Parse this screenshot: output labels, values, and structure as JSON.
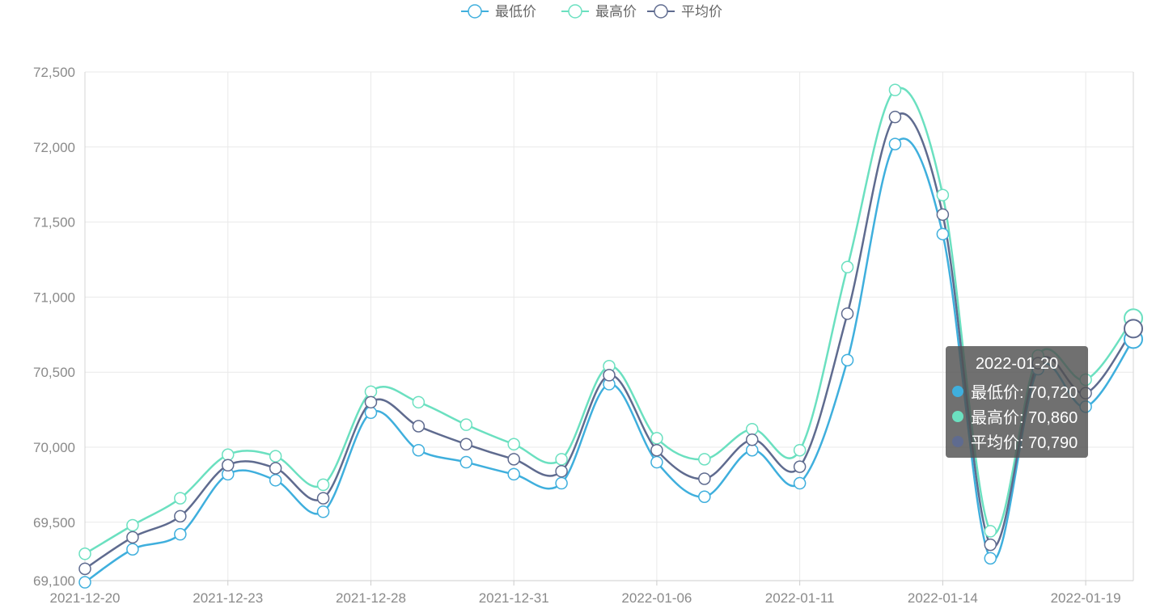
{
  "chart_data": {
    "type": "line",
    "smooth": true,
    "x": [
      "2021-12-20",
      "2021-12-21",
      "2021-12-22",
      "2021-12-23",
      "2021-12-24",
      "2021-12-27",
      "2021-12-28",
      "2021-12-29",
      "2021-12-30",
      "2021-12-31",
      "2022-01-04",
      "2022-01-05",
      "2022-01-06",
      "2022-01-07",
      "2022-01-10",
      "2022-01-11",
      "2022-01-12",
      "2022-01-13",
      "2022-01-14",
      "2022-01-17",
      "2022-01-18",
      "2022-01-19",
      "2022-01-20"
    ],
    "x_tick_labels": [
      "2021-12-20",
      "2021-12-23",
      "2021-12-28",
      "2021-12-31",
      "2022-01-06",
      "2022-01-11",
      "2022-01-14",
      "2022-01-19"
    ],
    "y_tick_labels": [
      "69,100",
      "69,500",
      "70,000",
      "70,500",
      "71,000",
      "71,500",
      "72,000",
      "72,500"
    ],
    "ylim": [
      69100,
      72500
    ],
    "grid": true,
    "legend_position": "top-center",
    "series": [
      {
        "name": "最低价",
        "color": "#3fafdd",
        "values": [
          69100,
          69320,
          69420,
          69820,
          69780,
          69570,
          70230,
          69980,
          69900,
          69820,
          69760,
          70420,
          69900,
          69670,
          69980,
          69760,
          70580,
          72020,
          71420,
          69260,
          70520,
          70270,
          70720
        ]
      },
      {
        "name": "最高价",
        "color": "#6be0c0",
        "values": [
          69290,
          69480,
          69660,
          69950,
          69940,
          69750,
          70370,
          70300,
          70150,
          70020,
          69920,
          70540,
          70060,
          69920,
          70120,
          69980,
          71200,
          72380,
          71680,
          69440,
          70610,
          70450,
          70860
        ]
      },
      {
        "name": "平均价",
        "color": "#5f6b8f",
        "values": [
          69190,
          69400,
          69540,
          69880,
          69860,
          69660,
          70300,
          70140,
          70020,
          69920,
          69840,
          70480,
          69980,
          69790,
          70050,
          69870,
          70890,
          72200,
          71550,
          69350,
          70560,
          70360,
          70790
        ]
      }
    ]
  },
  "tooltip": {
    "title": "2022-01-20",
    "rows": [
      {
        "label": "最低价: 70,720",
        "color": "#3fafdd"
      },
      {
        "label": "最高价: 70,860",
        "color": "#6be0c0"
      },
      {
        "label": "平均价: 70,790",
        "color": "#5f6b8f"
      }
    ]
  }
}
